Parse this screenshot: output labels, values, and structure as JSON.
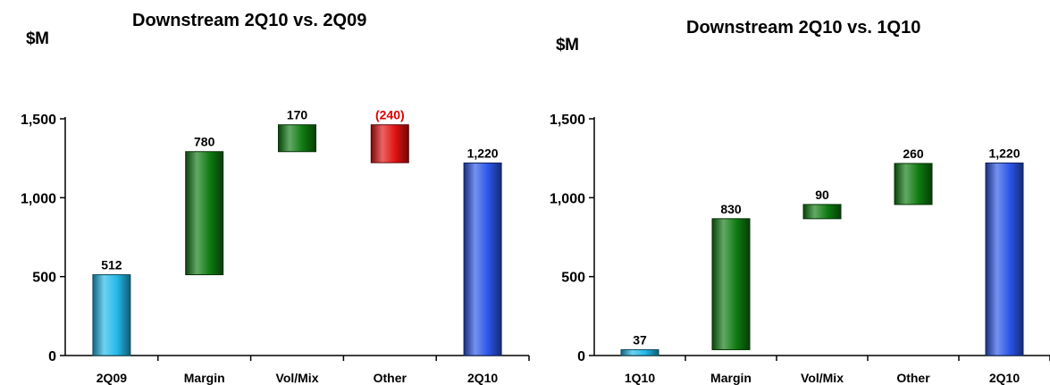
{
  "chart_data": [
    {
      "type": "waterfall",
      "title": "Downstream 2Q10 vs. 2Q09",
      "ylabel": "$M",
      "ylim": [
        0,
        1500
      ],
      "yticks": [
        "0",
        "500",
        "1,000",
        "1,500"
      ],
      "categories": [
        "2Q09",
        "Margin",
        "Vol/Mix",
        "Other",
        "2Q10"
      ],
      "values": [
        512,
        780,
        170,
        -240,
        1220
      ],
      "labels": [
        "512",
        "780",
        "170",
        "(240)",
        "1,220"
      ],
      "kinds": [
        "start",
        "increase",
        "increase",
        "decrease",
        "total"
      ],
      "colors": {
        "start": "#22b8e8",
        "increase": "#0e7a10",
        "decrease": "#e01010",
        "total": "#2a55e8",
        "negative_label": "#e00000"
      }
    },
    {
      "type": "waterfall",
      "title": "Downstream 2Q10 vs. 1Q10",
      "ylabel": "$M",
      "ylim": [
        0,
        1500
      ],
      "yticks": [
        "0",
        "500",
        "1,000",
        "1,500"
      ],
      "categories": [
        "1Q10",
        "Margin",
        "Vol/Mix",
        "Other",
        "2Q10"
      ],
      "values": [
        37,
        830,
        90,
        260,
        1220
      ],
      "labels": [
        "37",
        "830",
        "90",
        "260",
        "1,220"
      ],
      "kinds": [
        "start",
        "increase",
        "increase",
        "increase",
        "total"
      ],
      "colors": {
        "start": "#22b8e8",
        "increase": "#0e7a10",
        "decrease": "#e01010",
        "total": "#2a55e8",
        "negative_label": "#e00000"
      }
    }
  ]
}
